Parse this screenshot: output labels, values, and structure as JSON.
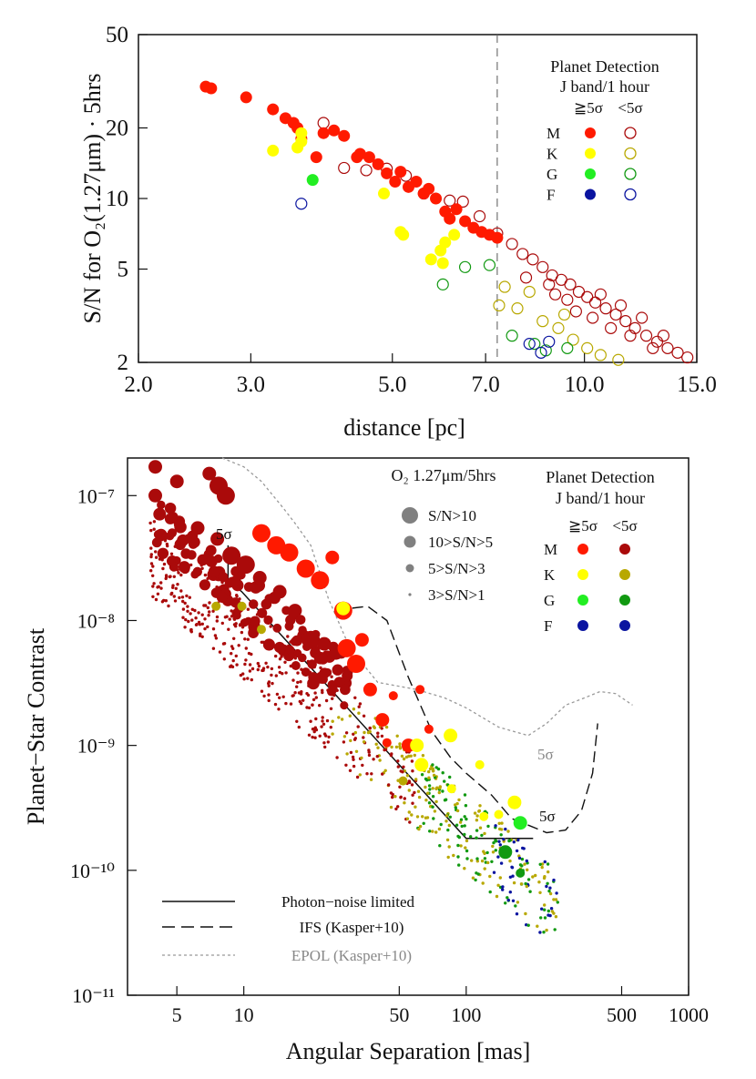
{
  "colors": {
    "M_detect": "#ff1a00",
    "M_nondetect": "#aa0a0a",
    "K_detect": "#ffff00",
    "K_nondetect": "#b8a800",
    "G_detect": "#22ee22",
    "G_nondetect": "#119911",
    "F_detect": "#0a14a0",
    "F_nondetect": "#0a14a0",
    "axis": "#111111",
    "epol": "#999999"
  },
  "chart_data": [
    {
      "type": "scatter",
      "xscale": "log",
      "yscale": "log",
      "xlabel": "distance [pc]",
      "ylabel": "S/N for O₂(1.27μm) · 5hrs",
      "xlim": [
        2.0,
        15.0
      ],
      "ylim": [
        2,
        50
      ],
      "xticks": [
        "2.0",
        "3.0",
        "5.0",
        "7.0",
        "10.0",
        "15.0"
      ],
      "yticks": [
        "2",
        "5",
        "10",
        "20",
        "50"
      ],
      "vline": 7.3,
      "legend": {
        "title1": "Planet Detection",
        "title2": "J band/1 hour",
        "col_detect": "≧5σ",
        "col_nondetect": "<5σ",
        "rows": [
          "M",
          "K",
          "G",
          "F"
        ]
      },
      "series": [
        {
          "name": "M",
          "detect": [
            [
              2.55,
              30
            ],
            [
              2.6,
              29.5
            ],
            [
              2.95,
              27
            ],
            [
              3.25,
              24
            ],
            [
              3.4,
              22
            ],
            [
              3.5,
              21
            ],
            [
              3.55,
              20
            ],
            [
              3.6,
              18
            ],
            [
              3.8,
              15
            ],
            [
              3.9,
              19
            ],
            [
              4.05,
              19.5
            ],
            [
              4.2,
              18.5
            ],
            [
              4.4,
              15
            ],
            [
              4.45,
              15.5
            ],
            [
              4.6,
              15
            ],
            [
              4.75,
              14
            ],
            [
              4.9,
              12.8
            ],
            [
              5.05,
              11.8
            ],
            [
              5.15,
              13
            ],
            [
              5.3,
              11.2
            ],
            [
              5.45,
              11.8
            ],
            [
              5.6,
              10.5
            ],
            [
              5.7,
              11
            ],
            [
              5.85,
              10
            ],
            [
              6.05,
              8.8
            ],
            [
              6.15,
              8.2
            ],
            [
              6.3,
              9
            ],
            [
              6.5,
              8
            ],
            [
              6.7,
              7.5
            ],
            [
              6.9,
              7.2
            ],
            [
              7.1,
              7
            ],
            [
              7.3,
              6.8
            ]
          ],
          "nondetect": [
            [
              3.9,
              21
            ],
            [
              4.2,
              13.5
            ],
            [
              4.55,
              13.2
            ],
            [
              4.9,
              13.4
            ],
            [
              5.25,
              12.5
            ],
            [
              5.6,
              10.5
            ],
            [
              6.15,
              9.8
            ],
            [
              6.45,
              9.7
            ],
            [
              6.85,
              8.4
            ],
            [
              7.3,
              7.1
            ],
            [
              7.7,
              6.4
            ],
            [
              8.0,
              5.8
            ],
            [
              8.3,
              5.5
            ],
            [
              8.6,
              5.1
            ],
            [
              8.9,
              4.7
            ],
            [
              9.2,
              4.5
            ],
            [
              9.5,
              4.3
            ],
            [
              9.8,
              4.0
            ],
            [
              10.1,
              3.8
            ],
            [
              10.4,
              3.6
            ],
            [
              10.8,
              3.4
            ],
            [
              11.2,
              3.2
            ],
            [
              11.6,
              3.0
            ],
            [
              12.0,
              2.8
            ],
            [
              12.5,
              2.6
            ],
            [
              13.0,
              2.45
            ],
            [
              13.5,
              2.3
            ],
            [
              14.0,
              2.2
            ],
            [
              14.5,
              2.1
            ],
            [
              9.0,
              3.9
            ],
            [
              9.7,
              3.3
            ],
            [
              10.3,
              3.1
            ],
            [
              11.0,
              2.8
            ],
            [
              11.8,
              2.6
            ],
            [
              12.8,
              2.3
            ],
            [
              8.1,
              4.6
            ],
            [
              8.8,
              4.3
            ],
            [
              9.4,
              3.7
            ],
            [
              10.6,
              3.9
            ],
            [
              11.4,
              3.5
            ],
            [
              12.3,
              3.1
            ],
            [
              13.3,
              2.6
            ]
          ]
        },
        {
          "name": "K",
          "detect": [
            [
              3.25,
              16
            ],
            [
              3.55,
              16.5
            ],
            [
              3.6,
              17.5
            ],
            [
              3.6,
              19
            ],
            [
              4.85,
              10.5
            ],
            [
              5.15,
              7.2
            ],
            [
              5.2,
              7
            ],
            [
              5.75,
              5.5
            ],
            [
              5.95,
              6
            ],
            [
              6.05,
              6.5
            ],
            [
              6.25,
              7
            ],
            [
              6.0,
              5.3
            ]
          ],
          "nondetect": [
            [
              7.35,
              3.5
            ],
            [
              7.5,
              4.2
            ],
            [
              7.85,
              3.4
            ],
            [
              8.6,
              3.0
            ],
            [
              9.1,
              2.8
            ],
            [
              9.6,
              2.5
            ],
            [
              10.1,
              2.3
            ],
            [
              10.6,
              2.15
            ],
            [
              11.3,
              2.05
            ],
            [
              8.2,
              4.0
            ],
            [
              9.3,
              3.2
            ]
          ]
        },
        {
          "name": "G",
          "detect": [
            [
              3.75,
              12
            ]
          ],
          "nondetect": [
            [
              6.0,
              4.3
            ],
            [
              6.5,
              5.1
            ],
            [
              7.1,
              5.2
            ],
            [
              7.7,
              2.6
            ],
            [
              8.35,
              2.4
            ],
            [
              8.7,
              2.25
            ],
            [
              9.4,
              2.3
            ]
          ]
        },
        {
          "name": "F",
          "detect": [],
          "nondetect": [
            [
              3.6,
              9.5
            ],
            [
              8.2,
              2.4
            ],
            [
              8.55,
              2.2
            ],
            [
              8.8,
              2.45
            ]
          ]
        }
      ]
    },
    {
      "type": "scatter",
      "xscale": "log",
      "yscale": "log",
      "xlabel": "Angular Separation [mas]",
      "ylabel": "Planet−Star Contrast",
      "xlim": [
        3,
        1000
      ],
      "ylim": [
        1e-11,
        2e-07
      ],
      "xticks": [
        "5",
        "10",
        "50",
        "100",
        "500",
        "1000"
      ],
      "yticks": [
        "10⁻¹¹",
        "10⁻¹⁰",
        "10⁻⁹",
        "10⁻⁸",
        "10⁻⁷"
      ],
      "legend": {
        "title1": "Planet Detection",
        "title2": "J band/1 hour",
        "col_detect": "≧5σ",
        "col_nondetect": "<5σ",
        "rows": [
          "M",
          "K",
          "G",
          "F"
        ]
      },
      "size_legend": {
        "title": "O₂ 1.27μm/5hrs",
        "items": [
          "S/N>10",
          "10>S/N>5",
          "5>S/N>3",
          "3>S/N>1"
        ]
      },
      "line_legend": [
        "Photon−noise limited",
        "IFS (Kasper+10)",
        "EPOL (Kasper+10)"
      ],
      "annotations": [
        "5σ",
        "5σ",
        "5σ"
      ],
      "photon_noise_limit": {
        "x": [
          8.5,
          8.5,
          9.8,
          100,
          200
        ],
        "y": [
          4e-08,
          2.1e-08,
          1.7e-08,
          1.8e-10,
          1.8e-10
        ]
      },
      "ifs": {
        "x": [
          26,
          30,
          36,
          44,
          55,
          70,
          85,
          100,
          130,
          160,
          190,
          230,
          280,
          330,
          370,
          390
        ],
        "y": [
          1.2e-08,
          1.25e-08,
          1.3e-08,
          1e-08,
          3.5e-09,
          1.3e-09,
          8e-10,
          6e-10,
          4e-10,
          2.6e-10,
          2.3e-10,
          2e-10,
          2.1e-10,
          3e-10,
          6e-10,
          1.5e-09
        ]
      },
      "epol": {
        "x": [
          8,
          10,
          12,
          15,
          17,
          20,
          24,
          30,
          40,
          60,
          80,
          100,
          140,
          190,
          230,
          280,
          340,
          400,
          470,
          560
        ],
        "y": [
          2e-07,
          1.7e-07,
          1.3e-07,
          8e-08,
          6e-08,
          4e-08,
          1.5e-08,
          6e-09,
          3.2e-09,
          2.8e-09,
          2.4e-09,
          2e-09,
          1.4e-09,
          1.2e-09,
          1.5e-09,
          2.1e-09,
          2.4e-09,
          2.7e-09,
          2.6e-09,
          2.1e-09
        ]
      },
      "points": [
        {
          "x": 4,
          "y": 1.7e-07,
          "sn": "5-10",
          "class": "M_nondetect"
        },
        {
          "x": 4,
          "y": 1e-07,
          "sn": "5-10",
          "class": "M_nondetect"
        },
        {
          "x": 5,
          "y": 1.3e-07,
          "sn": "5-10",
          "class": "M_nondetect"
        },
        {
          "x": 7,
          "y": 1.5e-07,
          "sn": "5-10",
          "class": "M_nondetect"
        },
        {
          "x": 7.7,
          "y": 1.2e-07,
          "sn": ">10",
          "class": "M_nondetect"
        },
        {
          "x": 8.3,
          "y": 1e-07,
          "sn": ">10",
          "class": "M_nondetect"
        },
        {
          "x": 6.2,
          "y": 5.5e-08,
          "sn": "5-10",
          "class": "M_nondetect"
        },
        {
          "x": 7.6,
          "y": 4.5e-08,
          "sn": "5-10",
          "class": "M_nondetect"
        },
        {
          "x": 8.8,
          "y": 3.3e-08,
          "sn": ">10",
          "class": "M_nondetect"
        },
        {
          "x": 10.2,
          "y": 2.8e-08,
          "sn": ">10",
          "class": "M_nondetect"
        },
        {
          "x": 11.8,
          "y": 2.2e-08,
          "sn": "5-10",
          "class": "M_nondetect"
        },
        {
          "x": 14.5,
          "y": 1.7e-08,
          "sn": "5-10",
          "class": "M_nondetect"
        },
        {
          "x": 17,
          "y": 1.2e-08,
          "sn": "5-10",
          "class": "M_nondetect"
        },
        {
          "x": 20,
          "y": 7e-09,
          "sn": ">10",
          "class": "M_nondetect"
        },
        {
          "x": 23,
          "y": 6.5e-09,
          "sn": "5-10",
          "class": "M_nondetect"
        },
        {
          "x": 26,
          "y": 5.5e-09,
          "sn": "5-10",
          "class": "M_nondetect"
        },
        {
          "x": 29,
          "y": 4e-09,
          "sn": "3-5",
          "class": "M_nondetect"
        },
        {
          "x": 13,
          "y": 1.5e-08,
          "sn": "3-5",
          "class": "M_nondetect"
        },
        {
          "x": 16,
          "y": 9e-09,
          "sn": "3-5",
          "class": "M_nondetect"
        },
        {
          "x": 12,
          "y": 5e-08,
          "sn": ">10",
          "class": "M_detect"
        },
        {
          "x": 14,
          "y": 4e-08,
          "sn": ">10",
          "class": "M_detect"
        },
        {
          "x": 16,
          "y": 3.5e-08,
          "sn": ">10",
          "class": "M_detect"
        },
        {
          "x": 19,
          "y": 2.6e-08,
          "sn": ">10",
          "class": "M_detect"
        },
        {
          "x": 22,
          "y": 2.1e-08,
          "sn": ">10",
          "class": "M_detect"
        },
        {
          "x": 25,
          "y": 3.2e-08,
          "sn": "5-10",
          "class": "M_detect"
        },
        {
          "x": 28,
          "y": 1.2e-08,
          "sn": ">10",
          "class": "M_detect"
        },
        {
          "x": 29,
          "y": 6e-09,
          "sn": ">10",
          "class": "M_detect"
        },
        {
          "x": 32,
          "y": 4.5e-09,
          "sn": ">10",
          "class": "M_detect"
        },
        {
          "x": 34,
          "y": 7e-09,
          "sn": "5-10",
          "class": "M_detect"
        },
        {
          "x": 37,
          "y": 2.8e-09,
          "sn": "5-10",
          "class": "M_detect"
        },
        {
          "x": 42,
          "y": 1.6e-09,
          "sn": "5-10",
          "class": "M_detect"
        },
        {
          "x": 47,
          "y": 2.5e-09,
          "sn": "3-5",
          "class": "M_detect"
        },
        {
          "x": 55,
          "y": 1e-09,
          "sn": "5-10",
          "class": "M_detect"
        },
        {
          "x": 62,
          "y": 2.8e-09,
          "sn": "3-5",
          "class": "M_detect"
        },
        {
          "x": 68,
          "y": 1.35e-09,
          "sn": "3-5",
          "class": "M_detect"
        },
        {
          "x": 44,
          "y": 1.05e-09,
          "sn": "3-5",
          "class": "M_detect"
        },
        {
          "x": 28,
          "y": 1.25e-08,
          "sn": "5-10",
          "class": "K_detect"
        },
        {
          "x": 60,
          "y": 1e-09,
          "sn": "5-10",
          "class": "K_detect"
        },
        {
          "x": 63,
          "y": 7e-10,
          "sn": "5-10",
          "class": "K_detect"
        },
        {
          "x": 85,
          "y": 1.2e-09,
          "sn": "5-10",
          "class": "K_detect"
        },
        {
          "x": 86,
          "y": 4.5e-10,
          "sn": "3-5",
          "class": "K_detect"
        },
        {
          "x": 115,
          "y": 7e-10,
          "sn": "3-5",
          "class": "K_detect"
        },
        {
          "x": 120,
          "y": 2.7e-10,
          "sn": "3-5",
          "class": "K_detect"
        },
        {
          "x": 140,
          "y": 2.8e-10,
          "sn": "3-5",
          "class": "K_detect"
        },
        {
          "x": 165,
          "y": 3.5e-10,
          "sn": "5-10",
          "class": "K_detect"
        },
        {
          "x": 150,
          "y": 1.4e-10,
          "sn": "5-10",
          "class": "G_nondetect"
        },
        {
          "x": 175,
          "y": 2.4e-10,
          "sn": "5-10",
          "class": "G_detect"
        },
        {
          "x": 175,
          "y": 9.5e-11,
          "sn": "3-5",
          "class": "G_nondetect"
        },
        {
          "x": 7.5,
          "y": 1.3e-08,
          "sn": "3-5",
          "class": "K_nondetect"
        },
        {
          "x": 9.8,
          "y": 1.3e-08,
          "sn": "3-5",
          "class": "K_nondetect"
        },
        {
          "x": 12,
          "y": 8.5e-09,
          "sn": "3-5",
          "class": "K_nondetect"
        },
        {
          "x": 52,
          "y": 5.2e-10,
          "sn": "3-5",
          "class": "K_nondetect"
        }
      ]
    }
  ]
}
